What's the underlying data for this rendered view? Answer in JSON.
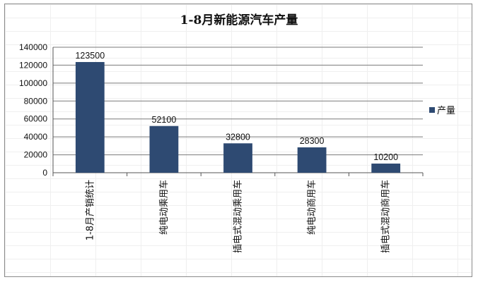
{
  "chart_data": {
    "type": "bar",
    "title": "1-8月新能源汽车产量",
    "categories": [
      "1-8月产销统计",
      "纯电动乘用车",
      "插电式混动乘用车",
      "纯电动商用车",
      "插电式混动商用车"
    ],
    "series": [
      {
        "name": "产量",
        "values": [
          123500,
          52100,
          32800,
          28300,
          10200
        ]
      }
    ],
    "ylim": [
      0,
      140000
    ],
    "yticks": [
      0,
      20000,
      40000,
      60000,
      80000,
      100000,
      120000,
      140000
    ],
    "xlabel": "",
    "ylabel": "",
    "grid": true,
    "legend": "right",
    "colors": {
      "bar": "#2e4a72",
      "grid": "#7a7a7a",
      "axis": "#555555"
    }
  }
}
